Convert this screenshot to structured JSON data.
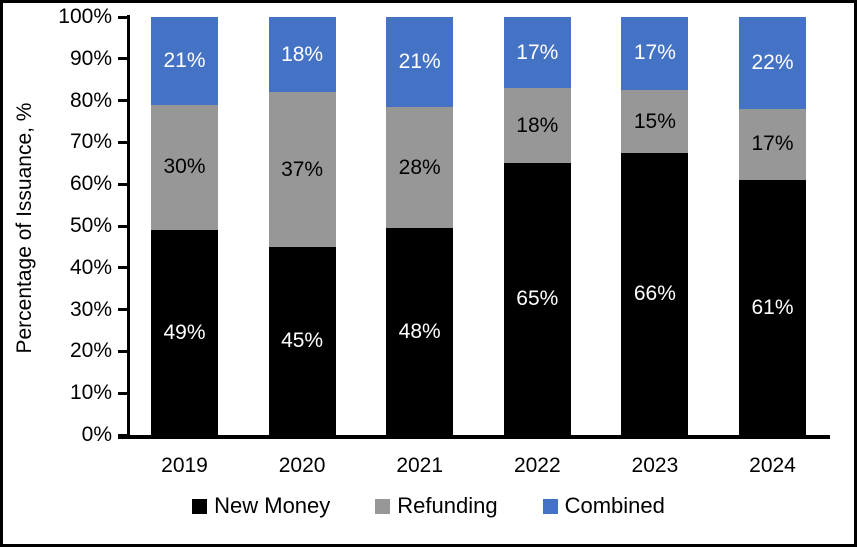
{
  "chart_data": {
    "type": "bar",
    "subtype": "stacked-percentage-column",
    "title": "",
    "xlabel": "",
    "ylabel": "Percentage of Issuance, %",
    "categories": [
      "2019",
      "2020",
      "2021",
      "2022",
      "2023",
      "2024"
    ],
    "series": [
      {
        "name": "New Money",
        "color": "#000000",
        "label_color": "#FFFFFF",
        "values": [
          49,
          45,
          48,
          65,
          66,
          61
        ]
      },
      {
        "name": "Refunding",
        "color": "#979797",
        "label_color": "#000000",
        "values": [
          30,
          37,
          28,
          18,
          15,
          17
        ]
      },
      {
        "name": "Combined",
        "color": "#4472C4",
        "label_color": "#FFFFFF",
        "values": [
          21,
          18,
          21,
          17,
          17,
          22
        ]
      }
    ],
    "value_suffix": "%",
    "y_axis": {
      "min": 0,
      "max": 100,
      "step": 10,
      "tick_suffix": "%"
    },
    "grid": "off",
    "legend_position": "bottom",
    "frame_border_color": "#000000"
  }
}
